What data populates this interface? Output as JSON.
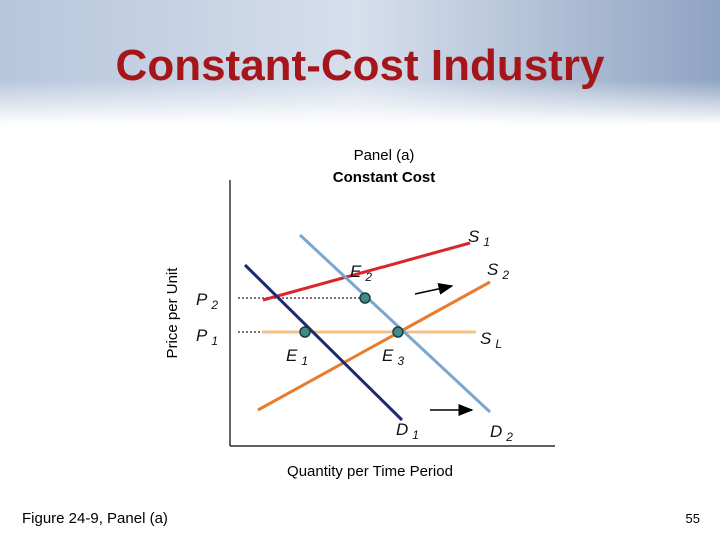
{
  "title": "Constant-Cost Industry",
  "panel": {
    "title": "Panel (a)",
    "subtitle": "Constant Cost"
  },
  "axes": {
    "y_label": "Price per Unit",
    "x_label": "Quantity per Time Period"
  },
  "labels": {
    "s1": {
      "text": "S",
      "sub": "1"
    },
    "s2": {
      "text": "S",
      "sub": "2"
    },
    "sl": {
      "text": "S",
      "sub": "L"
    },
    "d1": {
      "text": "D",
      "sub": "1"
    },
    "d2": {
      "text": "D",
      "sub": "2"
    },
    "e1": {
      "text": "E",
      "sub": "1"
    },
    "e2": {
      "text": "E",
      "sub": "2"
    },
    "e3": {
      "text": "E",
      "sub": "3"
    },
    "p1": {
      "text": "P",
      "sub": "1"
    },
    "p2": {
      "text": "P",
      "sub": "2"
    }
  },
  "footer": {
    "caption": "Figure 24-9, Panel (a)",
    "page": "55"
  }
}
